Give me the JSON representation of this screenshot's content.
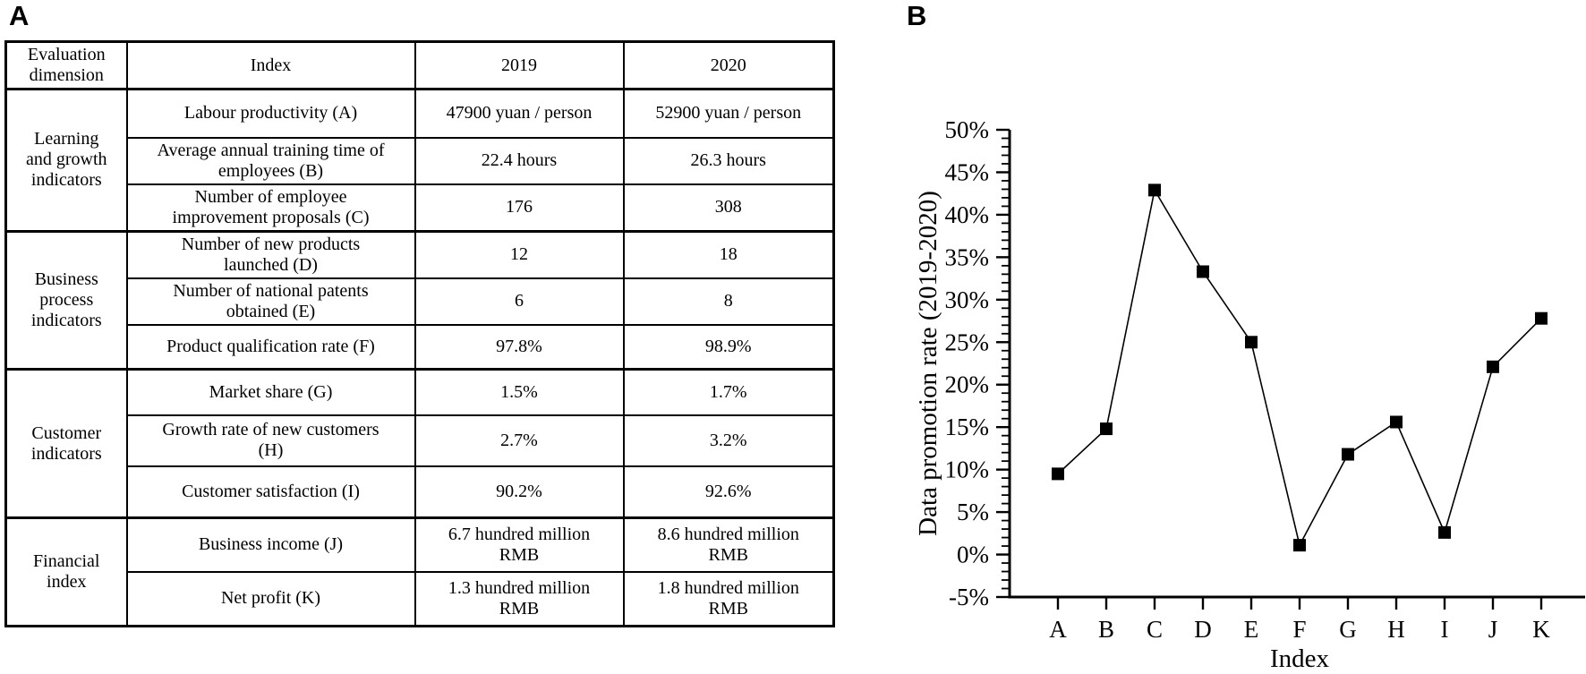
{
  "panels": {
    "a_label": "A",
    "b_label": "B"
  },
  "table": {
    "headers": [
      "Evaluation\ndimension",
      "Index",
      "2019",
      "2020"
    ],
    "groups": [
      {
        "dimension": "Learning\nand growth\nindicators",
        "rows": [
          {
            "index_label": "Labour productivity (A)",
            "v2019": "47900 yuan / person",
            "v2020": "52900 yuan / person"
          },
          {
            "index_label": "Average annual training time of\nemployees (B)",
            "v2019": "22.4 hours",
            "v2020": "26.3 hours"
          },
          {
            "index_label": "Number of employee\nimprovement proposals (C)",
            "v2019": "176",
            "v2020": "308"
          }
        ]
      },
      {
        "dimension": "Business\nprocess\nindicators",
        "rows": [
          {
            "index_label": "Number of new products\nlaunched (D)",
            "v2019": "12",
            "v2020": "18"
          },
          {
            "index_label": "Number of national patents\nobtained (E)",
            "v2019": "6",
            "v2020": "8"
          },
          {
            "index_label": "Product qualification rate (F)",
            "v2019": "97.8%",
            "v2020": "98.9%"
          }
        ]
      },
      {
        "dimension": "Customer\nindicators",
        "rows": [
          {
            "index_label": "Market share (G)",
            "v2019": "1.5%",
            "v2020": "1.7%"
          },
          {
            "index_label": "Growth rate of new customers\n(H)",
            "v2019": "2.7%",
            "v2020": "3.2%"
          },
          {
            "index_label": "Customer satisfaction (I)",
            "v2019": "90.2%",
            "v2020": "92.6%"
          }
        ]
      },
      {
        "dimension": "Financial\nindex",
        "rows": [
          {
            "index_label": "Business income (J)",
            "v2019": "6.7 hundred million\nRMB",
            "v2020": "8.6 hundred million\nRMB"
          },
          {
            "index_label": "Net profit (K)",
            "v2019": "1.3 hundred million\nRMB",
            "v2020": "1.8 hundred million\nRMB"
          }
        ]
      }
    ]
  },
  "chart_data": {
    "type": "line",
    "title": "",
    "xlabel": "Index",
    "ylabel": "Data promotion rate (2019-2020)",
    "categories": [
      "A",
      "B",
      "C",
      "D",
      "E",
      "F",
      "G",
      "H",
      "I",
      "J",
      "K"
    ],
    "values": [
      9.5,
      14.8,
      42.9,
      33.3,
      25.0,
      1.1,
      11.8,
      15.6,
      2.6,
      22.1,
      27.8
    ],
    "ylim": [
      -5,
      50
    ],
    "ytick_major_step": 5,
    "ytick_minor_step": 1,
    "ytick_suffix": "%",
    "grid": false,
    "legend": false,
    "marker": "square",
    "line_color": "#000000",
    "marker_color": "#000000"
  }
}
